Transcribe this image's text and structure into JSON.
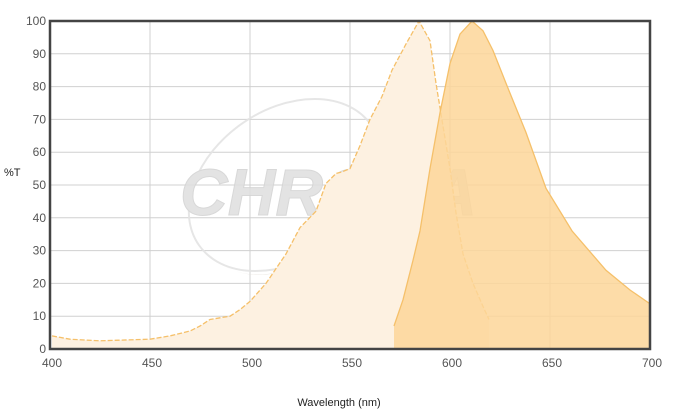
{
  "chart_data": {
    "type": "area",
    "xlabel": "Wavelength (nm)",
    "ylabel": "%T",
    "xlim": [
      400,
      700
    ],
    "ylim": [
      0,
      100
    ],
    "xticks": [
      400,
      450,
      500,
      550,
      600,
      650,
      700
    ],
    "yticks": [
      0,
      10,
      20,
      30,
      40,
      50,
      60,
      70,
      80,
      90,
      100
    ],
    "grid": true,
    "legend": "none",
    "watermark": "CHROMA",
    "series": [
      {
        "style": "dashed-outline-light-fill",
        "color": "#f5c06a",
        "fill": "#fdf1e1",
        "x": [
          401,
          410,
          425,
          450,
          460,
          470,
          475,
          480,
          485,
          490,
          495,
          500,
          508,
          518,
          525,
          533,
          538,
          543,
          546,
          550,
          555,
          560,
          566,
          571,
          578,
          584.5,
          590,
          593,
          596.5,
          600,
          603,
          606.5,
          611.5,
          616.5,
          619.5
        ],
        "y": [
          4,
          3,
          2.5,
          3,
          4,
          5.5,
          7,
          9,
          9.5,
          10,
          12,
          14.5,
          20,
          29,
          37,
          42,
          50.5,
          53.5,
          54,
          55,
          62,
          70,
          77,
          85,
          93,
          100,
          94,
          81,
          68,
          55,
          41.5,
          29,
          20,
          13,
          9
        ]
      },
      {
        "style": "solid-fill",
        "color": "#f5c06a",
        "fill": "#fdd699",
        "x": [
          572,
          576.5,
          581.5,
          585,
          590,
          595,
          600,
          605,
          611,
          616.5,
          621.5,
          628,
          638,
          648,
          661,
          678,
          690,
          699.5
        ],
        "y": [
          7,
          15,
          27,
          36,
          55,
          72,
          87,
          96,
          100,
          97,
          91,
          81,
          66,
          49,
          36,
          24,
          18,
          14
        ]
      }
    ]
  }
}
